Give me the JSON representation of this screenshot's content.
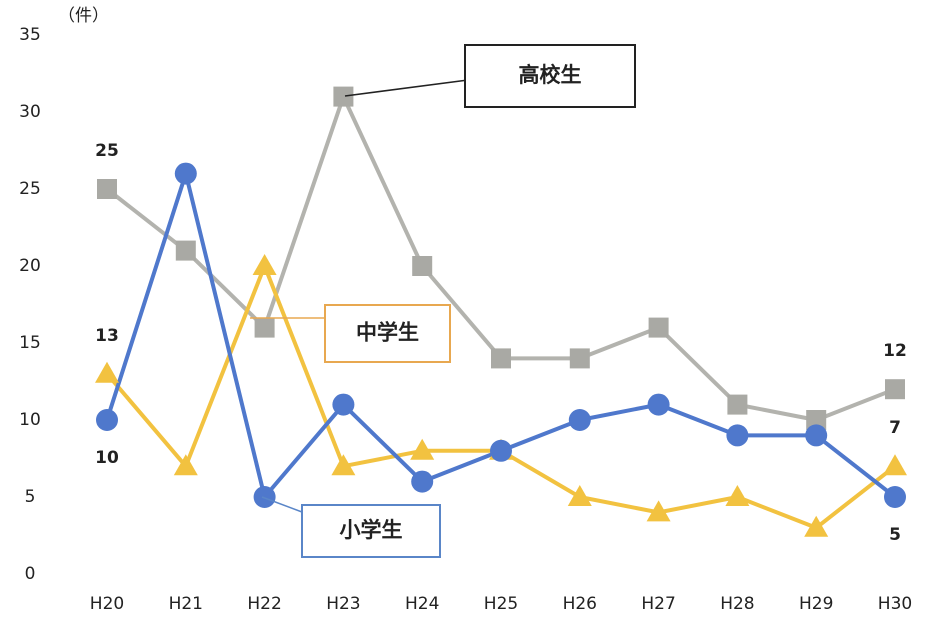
{
  "chart_data": {
    "type": "line",
    "y_unit": "（件）",
    "categories": [
      "H20",
      "H21",
      "H22",
      "H23",
      "H24",
      "H25",
      "H26",
      "H27",
      "H28",
      "H29",
      "H30"
    ],
    "series": [
      {
        "name": "高校生",
        "color": "#b3b3ae",
        "marker": "square",
        "values": [
          25,
          21,
          16,
          31,
          20,
          14,
          14,
          16,
          11,
          10,
          12
        ]
      },
      {
        "name": "中学生",
        "color": "#f2c240",
        "marker": "triangle",
        "values": [
          13,
          7,
          20,
          7,
          8,
          8,
          5,
          4,
          5,
          3,
          7
        ]
      },
      {
        "name": "小学生",
        "color": "#4f78cc",
        "marker": "circle",
        "values": [
          10,
          26,
          5,
          11,
          6,
          8,
          10,
          11,
          9,
          9,
          5
        ]
      }
    ],
    "ylim": [
      0,
      35
    ],
    "yticks": [
      0,
      5,
      10,
      15,
      20,
      25,
      30,
      35
    ],
    "grid": false
  }
}
